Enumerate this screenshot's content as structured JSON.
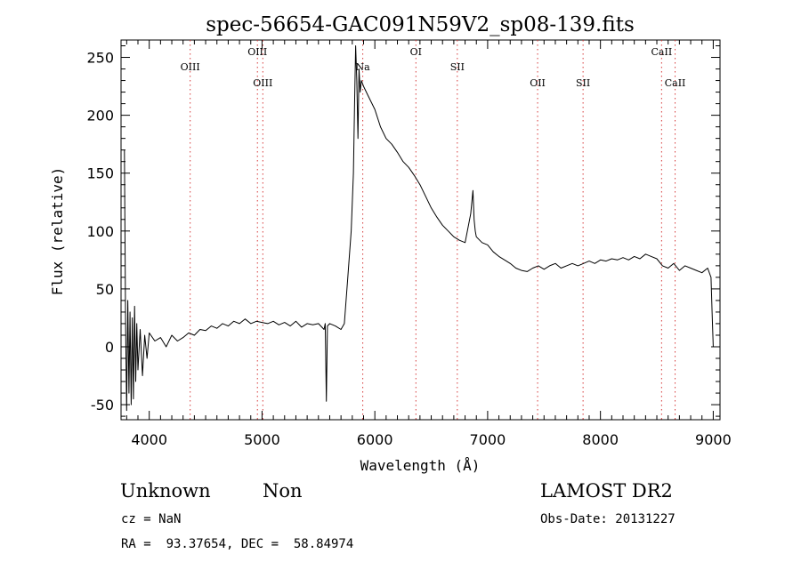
{
  "chart_data": {
    "type": "line",
    "title": "spec-56654-GAC091N59V2_sp08-139.fits",
    "xlabel": "Wavelength (Å)",
    "ylabel": "Flux (relative)",
    "xlim": [
      3750,
      9060
    ],
    "ylim": [
      -63,
      265
    ],
    "xticks": [
      4000,
      5000,
      6000,
      7000,
      8000,
      9000
    ],
    "yticks": [
      -50,
      0,
      50,
      100,
      150,
      200,
      250
    ],
    "grid": false,
    "series": [
      {
        "x": [
          3780,
          3790,
          3800,
          3810,
          3820,
          3830,
          3840,
          3850,
          3860,
          3870,
          3880,
          3890,
          3900,
          3920,
          3940,
          3960,
          3980,
          4000,
          4050,
          4100,
          4150,
          4200,
          4250,
          4300,
          4350,
          4400,
          4450,
          4500,
          4550,
          4600,
          4650,
          4700,
          4750,
          4800,
          4850,
          4900,
          4950,
          5000,
          5050,
          5100,
          5150,
          5200,
          5250,
          5300,
          5350,
          5400,
          5450,
          5500,
          5550,
          5560,
          5570,
          5580,
          5600,
          5650,
          5700,
          5730,
          5760,
          5790,
          5810,
          5820,
          5830,
          5840,
          5850,
          5860,
          5870,
          5880,
          5900,
          5950,
          6000,
          6050,
          6100,
          6150,
          6200,
          6250,
          6300,
          6350,
          6400,
          6450,
          6500,
          6550,
          6600,
          6650,
          6700,
          6750,
          6800,
          6850,
          6870,
          6880,
          6890,
          6900,
          6950,
          7000,
          7050,
          7100,
          7150,
          7200,
          7250,
          7300,
          7350,
          7400,
          7450,
          7500,
          7550,
          7600,
          7650,
          7700,
          7750,
          7800,
          7850,
          7900,
          7950,
          8000,
          8050,
          8100,
          8150,
          8200,
          8250,
          8300,
          8350,
          8400,
          8450,
          8500,
          8550,
          8600,
          8650,
          8700,
          8750,
          8800,
          8850,
          8900,
          8950,
          8980,
          8990,
          9000
        ],
        "y": [
          170,
          20,
          -55,
          40,
          -40,
          30,
          -50,
          25,
          -45,
          35,
          -30,
          20,
          -20,
          15,
          -25,
          10,
          -10,
          12,
          5,
          8,
          0,
          10,
          5,
          8,
          12,
          10,
          15,
          14,
          18,
          16,
          20,
          18,
          22,
          20,
          24,
          20,
          22,
          21,
          20,
          22,
          19,
          21,
          18,
          22,
          17,
          20,
          19,
          20,
          15,
          20,
          -47,
          18,
          20,
          18,
          15,
          20,
          60,
          100,
          150,
          210,
          260,
          230,
          180,
          240,
          220,
          230,
          225,
          215,
          205,
          190,
          180,
          175,
          168,
          160,
          155,
          148,
          140,
          130,
          120,
          112,
          105,
          100,
          95,
          92,
          90,
          115,
          135,
          110,
          100,
          95,
          90,
          88,
          82,
          78,
          75,
          72,
          68,
          66,
          65,
          68,
          70,
          67,
          70,
          72,
          68,
          70,
          72,
          70,
          72,
          74,
          72,
          75,
          74,
          76,
          75,
          77,
          75,
          78,
          76,
          80,
          78,
          76,
          70,
          68,
          72,
          66,
          70,
          68,
          66,
          64,
          68,
          60,
          30,
          0
        ]
      }
    ],
    "lines": [
      {
        "label": "OIII",
        "x": 4363,
        "row": "mid"
      },
      {
        "label": "OIII",
        "x": 4959,
        "row": "top"
      },
      {
        "label": "OIII",
        "x": 5007,
        "row": "low"
      },
      {
        "label": "Na",
        "x": 5893,
        "row": "mid"
      },
      {
        "label": "OI",
        "x": 6364,
        "row": "top"
      },
      {
        "label": "SII",
        "x": 6731,
        "row": "mid"
      },
      {
        "label": "OII",
        "x": 7443,
        "row": "low"
      },
      {
        "label": "SII",
        "x": 7846,
        "row": "low"
      },
      {
        "label": "CaII",
        "x": 8542,
        "row": "top"
      },
      {
        "label": "CaII",
        "x": 8662,
        "row": "low"
      }
    ]
  },
  "info": {
    "class_label": "Unknown",
    "subclass_label": "Non",
    "cz": "cz = NaN",
    "coords": "RA =  93.37654, DEC =  58.84974",
    "survey": "LAMOST DR2",
    "obs_date": "Obs-Date: 20131227"
  }
}
